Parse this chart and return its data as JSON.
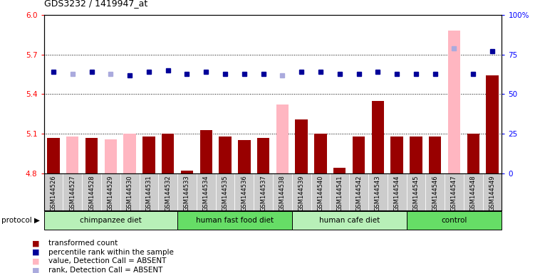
{
  "title": "GDS3232 / 1419947_at",
  "samples": [
    "GSM144526",
    "GSM144527",
    "GSM144528",
    "GSM144529",
    "GSM144530",
    "GSM144531",
    "GSM144532",
    "GSM144533",
    "GSM144534",
    "GSM144535",
    "GSM144536",
    "GSM144537",
    "GSM144538",
    "GSM144539",
    "GSM144540",
    "GSM144541",
    "GSM144542",
    "GSM144543",
    "GSM144544",
    "GSM144545",
    "GSM144546",
    "GSM144547",
    "GSM144548",
    "GSM144549"
  ],
  "values": [
    5.07,
    5.08,
    5.07,
    5.06,
    5.1,
    5.08,
    5.1,
    4.82,
    5.13,
    5.08,
    5.05,
    5.07,
    5.32,
    5.21,
    5.1,
    4.84,
    5.08,
    5.35,
    5.08,
    5.08,
    5.08,
    5.88,
    5.1,
    5.54
  ],
  "absent_value": [
    false,
    true,
    false,
    true,
    true,
    false,
    false,
    false,
    false,
    false,
    false,
    false,
    true,
    false,
    false,
    false,
    false,
    false,
    false,
    false,
    false,
    true,
    false,
    false
  ],
  "ranks": [
    64,
    63,
    64,
    63,
    62,
    64,
    65,
    63,
    64,
    63,
    63,
    63,
    62,
    64,
    64,
    63,
    63,
    64,
    63,
    63,
    63,
    79,
    63,
    77
  ],
  "absent_rank": [
    false,
    true,
    false,
    true,
    false,
    false,
    false,
    false,
    false,
    false,
    false,
    false,
    true,
    false,
    false,
    false,
    false,
    false,
    false,
    false,
    false,
    true,
    false,
    false
  ],
  "groups": [
    {
      "label": "chimpanzee diet",
      "start": 0,
      "end": 7
    },
    {
      "label": "human fast food diet",
      "start": 7,
      "end": 13
    },
    {
      "label": "human cafe diet",
      "start": 13,
      "end": 19
    },
    {
      "label": "control",
      "start": 19,
      "end": 24
    }
  ],
  "group_colors": [
    "#B8F0B8",
    "#66DD66",
    "#B8F0B8",
    "#66DD66"
  ],
  "ylim_left": [
    4.8,
    6.0
  ],
  "ylim_right": [
    0,
    100
  ],
  "yticks_left": [
    4.8,
    5.1,
    5.4,
    5.7,
    6.0
  ],
  "yticks_right": [
    0,
    25,
    50,
    75,
    100
  ],
  "bar_color": "#990000",
  "absent_bar_color": "#FFB6C1",
  "dot_color": "#000099",
  "absent_dot_color": "#AAAADD",
  "sample_bg": "#CCCCCC"
}
